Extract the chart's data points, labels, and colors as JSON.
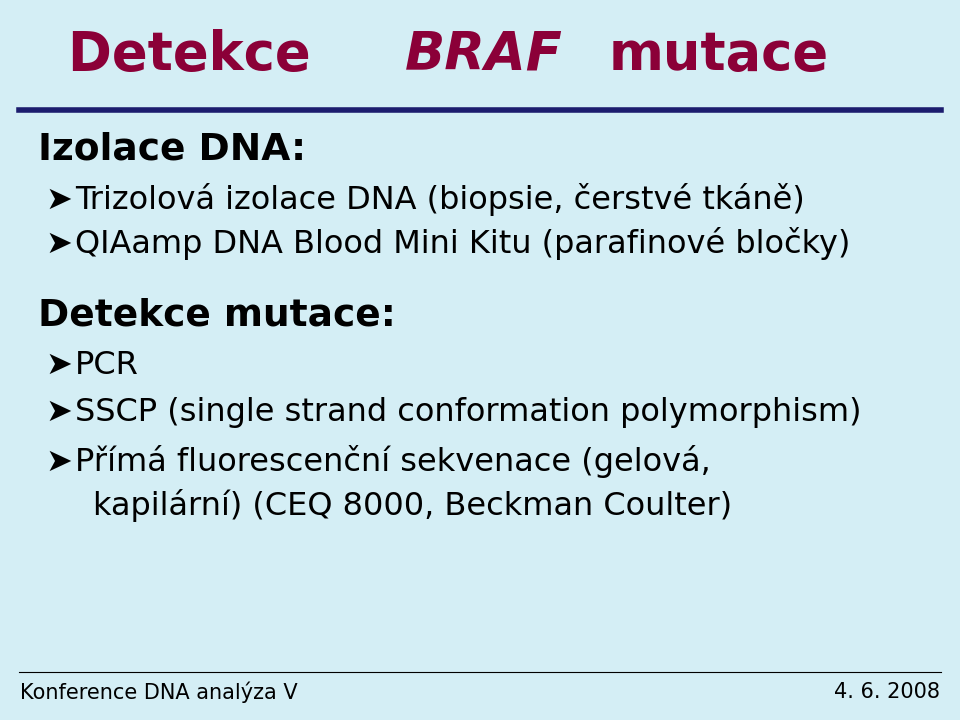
{
  "title_color": "#8B0038",
  "background_color": "#D4EEF5",
  "line_color": "#1C1C6E",
  "text_color": "#000000",
  "heading1": "Izolace DNA:",
  "bullet1_1": "Trizolová izolace DNA (biopsie, čerstvé tkáně)",
  "bullet1_2": "QIAamp DNA Blood Mini Kitu (parafinové bločky)",
  "heading2": "Detekce mutace:",
  "bullet2_1": "PCR",
  "bullet2_2": "SSCP (single strand conformation polymorphism)",
  "bullet2_3a": "Přímá fluorescenční sekvenace (gelová,",
  "bullet2_3b": "kapilární) (CEQ 8000, Beckman Coulter)",
  "footer_left": "Konference DNA analýza V",
  "footer_right": "4. 6. 2008",
  "arrow_char": "➤",
  "title_fontsize": 38,
  "heading_fontsize": 27,
  "bullet_fontsize": 23,
  "footer_fontsize": 15
}
